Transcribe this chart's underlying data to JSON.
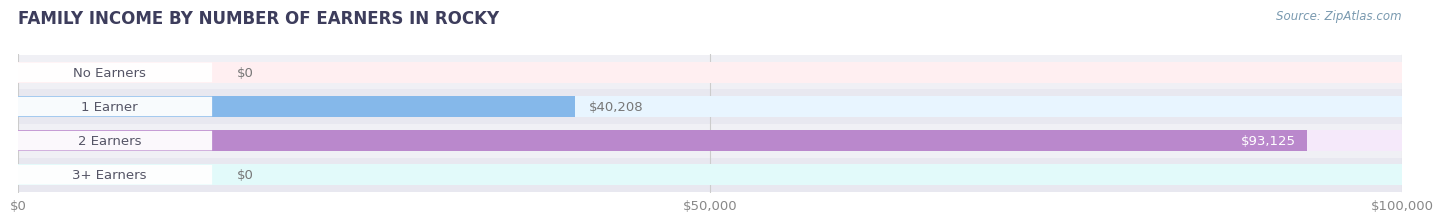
{
  "title": "FAMILY INCOME BY NUMBER OF EARNERS IN ROCKY",
  "source": "Source: ZipAtlas.com",
  "categories": [
    "No Earners",
    "1 Earner",
    "2 Earners",
    "3+ Earners"
  ],
  "values": [
    0,
    40208,
    93125,
    0
  ],
  "bar_colors": [
    "#f0a0aa",
    "#85b8ea",
    "#ba88cc",
    "#6dcece"
  ],
  "value_labels": [
    "$0",
    "$40,208",
    "$93,125",
    "$0"
  ],
  "label_inside": [
    false,
    false,
    true,
    false
  ],
  "xmax": 100000,
  "xticks": [
    0,
    50000,
    100000
  ],
  "xtick_labels": [
    "$0",
    "$50,000",
    "$100,000"
  ],
  "background_color": "#ffffff",
  "title_color": "#3d3d5c",
  "title_fontsize": 12,
  "axis_label_fontsize": 9.5,
  "bar_label_fontsize": 9.5,
  "category_fontsize": 9.5,
  "bar_height": 0.62,
  "row_bg_even": "#f0f0f5",
  "row_bg_odd": "#e8e8f0"
}
